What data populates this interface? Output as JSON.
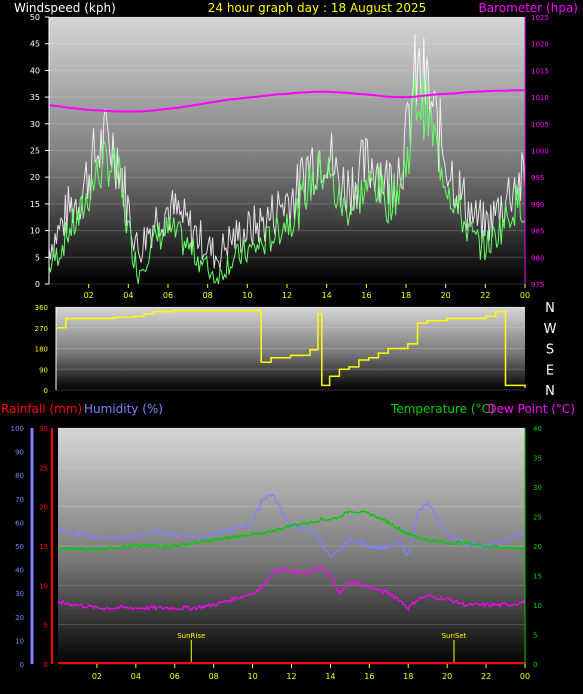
{
  "header": {
    "windspeed_label": "Windspeed (kph)",
    "graph_title": "24 hour graph day : 18 August 2025",
    "barometer_label": "Barometer (hpa)"
  },
  "lower_header": {
    "rainfall_label": "Rainfall (mm)",
    "humidity_label": "Humidity (%)",
    "temperature_label": "Temperature (°C)",
    "dewpoint_label": "Dew Point (°C)",
    "sunrise_label": "SunRise",
    "sunset_label": "SunSet"
  },
  "colors": {
    "wind_gust": "#ffffff",
    "wind_avg": "#66ff66",
    "barometer": "#ff00ff",
    "direction": "#ffff00",
    "rainfall": "#ff0000",
    "humidity": "#8080ff",
    "temperature": "#00cc00",
    "dewpoint": "#ff00ff",
    "time_ticks": "#ffff00"
  },
  "time_ticks": [
    "02",
    "04",
    "06",
    "08",
    "10",
    "12",
    "14",
    "16",
    "18",
    "20",
    "22",
    "00"
  ],
  "chart_data": [
    {
      "type": "line",
      "name": "wind_barometer",
      "x_hours_from_start": [
        0,
        0.5,
        1,
        1.5,
        2,
        2.5,
        3,
        3.5,
        4,
        4.5,
        5,
        5.5,
        6,
        6.5,
        7,
        7.5,
        8,
        8.5,
        9,
        9.5,
        10,
        10.5,
        11,
        11.5,
        12,
        12.5,
        13,
        13.5,
        14,
        14.5,
        15,
        15.5,
        16,
        16.5,
        17,
        17.5,
        18,
        18.5,
        19,
        19.5,
        20,
        20.5,
        21,
        21.5,
        22,
        22.5,
        23,
        23.5,
        24
      ],
      "series": [
        {
          "name": "Windspeed (kph)",
          "axis": "left",
          "values": [
            3,
            6,
            10,
            12,
            17,
            21,
            23,
            20,
            10,
            2,
            6,
            9,
            10,
            9,
            7,
            5,
            3,
            1,
            4,
            5,
            6,
            7,
            8,
            10,
            12,
            13,
            18,
            20,
            22,
            16,
            14,
            16,
            18,
            19,
            15,
            17,
            22,
            35,
            33,
            26,
            20,
            15,
            11,
            8,
            7,
            9,
            12,
            15,
            15
          ]
        },
        {
          "name": "Barometer (hpa)",
          "axis": "right",
          "values": [
            1008.5,
            1008.3,
            1008,
            1007.8,
            1007.6,
            1007.5,
            1007.4,
            1007.3,
            1007.3,
            1007.3,
            1007.4,
            1007.6,
            1007.8,
            1008,
            1008.3,
            1008.6,
            1008.9,
            1009.2,
            1009.5,
            1009.7,
            1009.9,
            1010.1,
            1010.3,
            1010.5,
            1010.6,
            1010.8,
            1010.9,
            1011,
            1011,
            1010.9,
            1010.8,
            1010.6,
            1010.5,
            1010.3,
            1010.1,
            1010,
            1010,
            1010.1,
            1010.3,
            1010.5,
            1010.6,
            1010.7,
            1010.9,
            1011,
            1011.1,
            1011.2,
            1011.2,
            1011.3,
            1011.3
          ]
        }
      ],
      "left_axis": {
        "label": "Windspeed (kph)",
        "ylim": [
          0,
          50
        ],
        "ticks": [
          "0",
          "5",
          "10",
          "15",
          "20",
          "25",
          "30",
          "35",
          "40",
          "45",
          "50"
        ]
      },
      "right_axis": {
        "label": "Barometer (hpa)",
        "ylim": [
          975,
          1025
        ],
        "ticks": [
          "975",
          "980",
          "985",
          "990",
          "995",
          "1000",
          "1005",
          "1010",
          "1015",
          "1020",
          "1025"
        ]
      },
      "title": "24 hour graph day : 18 August 2025"
    },
    {
      "type": "line",
      "name": "wind_direction",
      "x_hours_from_start": [
        0,
        0.5,
        1,
        2,
        3,
        4,
        4.5,
        5,
        6,
        7,
        8,
        8.5,
        9,
        10,
        10.5,
        11,
        12,
        13,
        13.4,
        13.6,
        14,
        14.5,
        15,
        15.5,
        16,
        16.5,
        17,
        18,
        18.5,
        19,
        20,
        21,
        22,
        22.5,
        23,
        24
      ],
      "values": [
        270,
        310,
        310,
        310,
        315,
        320,
        330,
        340,
        345,
        345,
        345,
        345,
        345,
        345,
        120,
        140,
        150,
        175,
        330,
        20,
        60,
        90,
        100,
        130,
        140,
        160,
        180,
        200,
        290,
        300,
        310,
        310,
        320,
        340,
        20,
        10
      ],
      "ylim": [
        0,
        360
      ],
      "left_ticks": [
        "0",
        "90",
        "180",
        "270",
        "360"
      ],
      "right_labels": [
        "N",
        "W",
        "S",
        "E",
        "N"
      ]
    },
    {
      "type": "line",
      "name": "rain_humidity_temp",
      "x_hours_from_start": [
        0,
        1,
        2,
        3,
        4,
        5,
        6,
        7,
        8,
        9,
        10,
        10.5,
        11,
        11.5,
        12,
        13,
        13.5,
        14,
        14.5,
        15,
        16,
        17,
        17.5,
        18,
        18.5,
        19,
        20,
        21,
        22,
        23,
        24
      ],
      "series": [
        {
          "name": "Humidity (%)",
          "axis": "humidity",
          "values": [
            57,
            55,
            54,
            53,
            54,
            56,
            55,
            54,
            55,
            57,
            60,
            70,
            72,
            65,
            58,
            57,
            52,
            45,
            48,
            53,
            50,
            49,
            52,
            46,
            64,
            68,
            55,
            51,
            50,
            52,
            56
          ]
        },
        {
          "name": "Temperature (°C)",
          "axis": "temp",
          "values": [
            19.5,
            19.5,
            19.5,
            19.8,
            20,
            20,
            20,
            20.5,
            21,
            21.5,
            22,
            22,
            22.5,
            23,
            23.5,
            24,
            24.5,
            24.5,
            25,
            26,
            25.5,
            24,
            23,
            22,
            21.5,
            21,
            20.5,
            20.5,
            20,
            19.8,
            19.5
          ]
        },
        {
          "name": "Dew Point (°C)",
          "axis": "temp",
          "values": [
            10.5,
            10,
            9.5,
            9.5,
            9.5,
            9.5,
            9.5,
            9.5,
            10,
            11,
            12,
            13,
            15.5,
            16,
            15.5,
            15.5,
            16.5,
            15,
            12,
            14,
            13,
            12,
            11,
            9.5,
            11,
            11.5,
            11,
            10,
            10,
            10,
            10.5
          ]
        },
        {
          "name": "Rainfall (mm)",
          "axis": "rain",
          "values": [
            0,
            0,
            0,
            0,
            0,
            0,
            0,
            0,
            0,
            0,
            0,
            0,
            0,
            0,
            0,
            0,
            0,
            0,
            0,
            0,
            0,
            0,
            0,
            0,
            0,
            0,
            0,
            0,
            0,
            0,
            0
          ]
        }
      ],
      "humidity_axis": {
        "ylim": [
          0,
          100
        ],
        "ticks": [
          "0",
          "10",
          "20",
          "30",
          "40",
          "50",
          "60",
          "70",
          "80",
          "90",
          "100"
        ]
      },
      "rain_axis": {
        "ylim": [
          0,
          30
        ],
        "ticks": [
          "0",
          "5",
          "10",
          "15",
          "20",
          "25",
          "30"
        ]
      },
      "temp_axis": {
        "ylim": [
          0,
          40
        ],
        "ticks": [
          "0",
          "5",
          "10",
          "15",
          "20",
          "25",
          "30",
          "35",
          "40"
        ]
      },
      "sunrise_hour": 6.85,
      "sunset_hour": 20.35
    }
  ]
}
